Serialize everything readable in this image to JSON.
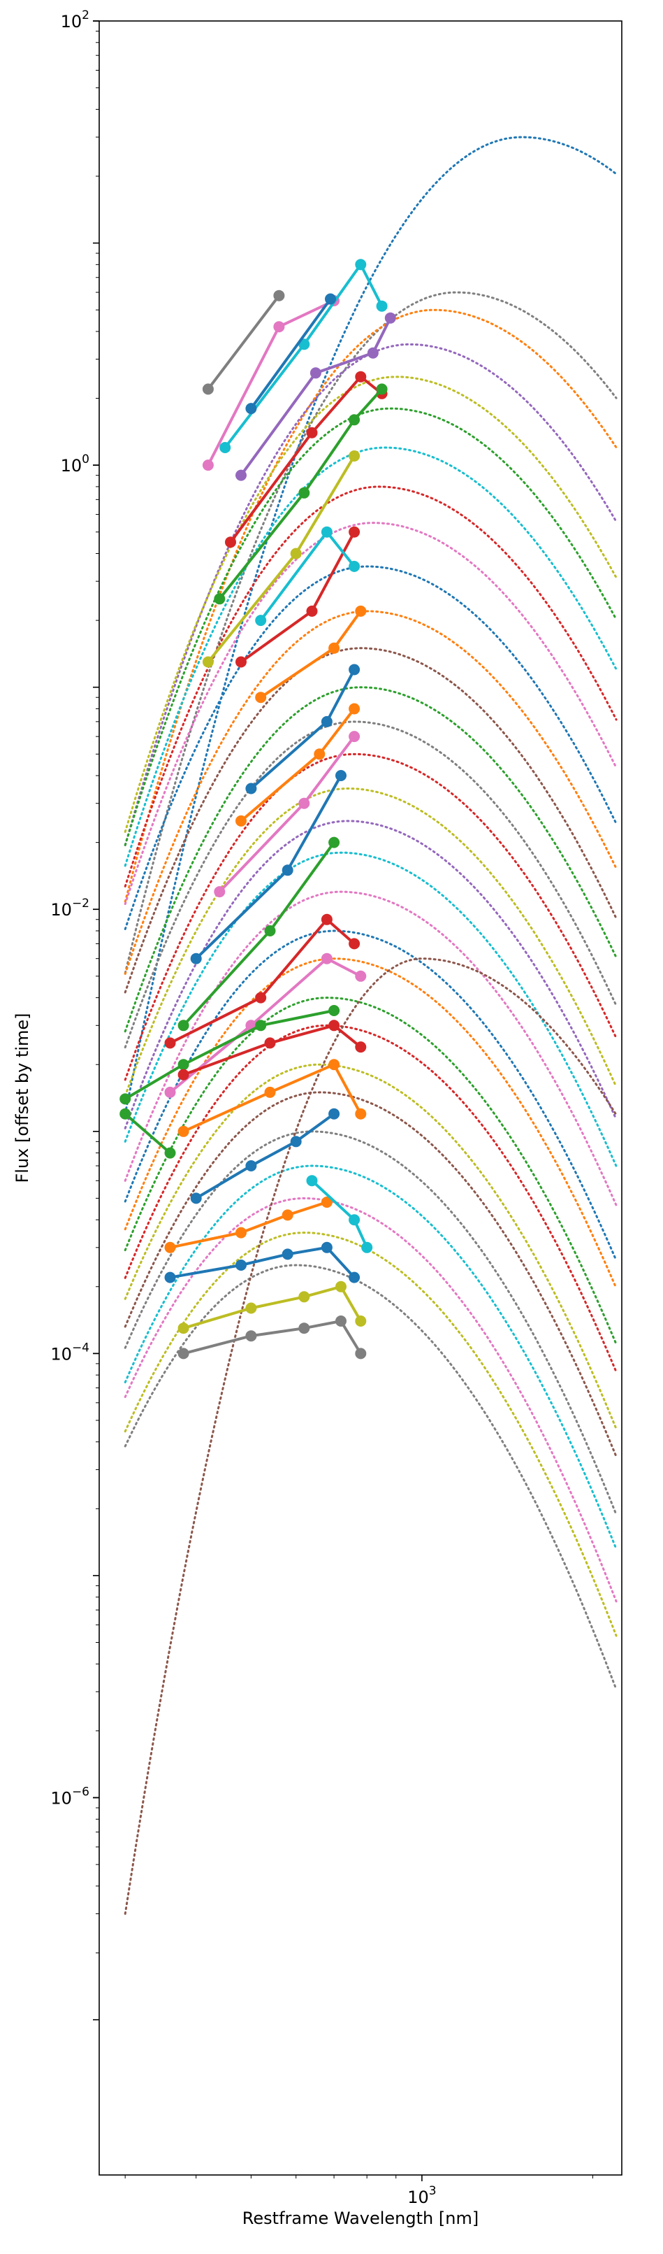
{
  "chart_data": {
    "type": "line",
    "title": "",
    "xlabel": "Restframe Wavelength [nm]",
    "ylabel": "Flux [offset by time]",
    "xscale": "log",
    "yscale": "log",
    "xlim": [
      270,
      2250
    ],
    "ylim": [
      2e-08,
      100
    ],
    "grid": false,
    "legend": "none",
    "y_ticks": [
      {
        "value": 100,
        "mantissa": "10",
        "exponent": "2"
      },
      {
        "value": 1,
        "mantissa": "10",
        "exponent": "0"
      },
      {
        "value": 0.01,
        "mantissa": "10",
        "exponent": "−2"
      },
      {
        "value": 0.0001,
        "mantissa": "10",
        "exponent": "−4"
      },
      {
        "value": 1e-06,
        "mantissa": "10",
        "exponent": "−6"
      }
    ],
    "x_ticks": [
      {
        "value": 1000,
        "mantissa": "10",
        "exponent": "3"
      }
    ],
    "x_minor_ticks": [
      300,
      400,
      500,
      600,
      700,
      800,
      900,
      2000
    ],
    "colors": [
      "#1f77b4",
      "#ff7f0e",
      "#2ca02c",
      "#d62728",
      "#9467bd",
      "#8c564b",
      "#e377c2",
      "#7f7f7f",
      "#bcbd22",
      "#17becf"
    ],
    "model_curves_note_free": true,
    "model_curves": [
      {
        "peak_wavelength": 1500,
        "peak_flux": 30,
        "color_index": 0
      },
      {
        "peak_wavelength": 1150,
        "peak_flux": 6,
        "color_index": 7
      },
      {
        "peak_wavelength": 1050,
        "peak_flux": 5,
        "color_index": 1
      },
      {
        "peak_wavelength": 950,
        "peak_flux": 3.5,
        "color_index": 4
      },
      {
        "peak_wavelength": 900,
        "peak_flux": 2.5,
        "color_index": 8
      },
      {
        "peak_wavelength": 880,
        "peak_flux": 1.8,
        "color_index": 2
      },
      {
        "peak_wavelength": 860,
        "peak_flux": 1.2,
        "color_index": 9
      },
      {
        "peak_wavelength": 840,
        "peak_flux": 0.8,
        "color_index": 3
      },
      {
        "peak_wavelength": 820,
        "peak_flux": 0.55,
        "color_index": 6
      },
      {
        "peak_wavelength": 800,
        "peak_flux": 0.35,
        "color_index": 0
      },
      {
        "peak_wavelength": 800,
        "peak_flux": 0.22,
        "color_index": 1
      },
      {
        "peak_wavelength": 780,
        "peak_flux": 0.15,
        "color_index": 5
      },
      {
        "peak_wavelength": 780,
        "peak_flux": 0.1,
        "color_index": 2
      },
      {
        "peak_wavelength": 760,
        "peak_flux": 0.07,
        "color_index": 7
      },
      {
        "peak_wavelength": 760,
        "peak_flux": 0.05,
        "color_index": 3
      },
      {
        "peak_wavelength": 740,
        "peak_flux": 0.035,
        "color_index": 8
      },
      {
        "peak_wavelength": 740,
        "peak_flux": 0.025,
        "color_index": 4
      },
      {
        "peak_wavelength": 720,
        "peak_flux": 0.018,
        "color_index": 9
      },
      {
        "peak_wavelength": 720,
        "peak_flux": 0.012,
        "color_index": 6
      },
      {
        "peak_wavelength": 700,
        "peak_flux": 0.008,
        "color_index": 0
      },
      {
        "peak_wavelength": 700,
        "peak_flux": 0.006,
        "color_index": 1
      },
      {
        "peak_wavelength": 680,
        "peak_flux": 0.004,
        "color_index": 2
      },
      {
        "peak_wavelength": 680,
        "peak_flux": 0.003,
        "color_index": 3
      },
      {
        "peak_wavelength": 660,
        "peak_flux": 0.002,
        "color_index": 8
      },
      {
        "peak_wavelength": 660,
        "peak_flux": 0.0015,
        "color_index": 5
      },
      {
        "peak_wavelength": 640,
        "peak_flux": 0.001,
        "color_index": 7
      },
      {
        "peak_wavelength": 640,
        "peak_flux": 0.0007,
        "color_index": 9
      },
      {
        "peak_wavelength": 620,
        "peak_flux": 0.0005,
        "color_index": 6
      },
      {
        "peak_wavelength": 620,
        "peak_flux": 0.00035,
        "color_index": 8
      },
      {
        "peak_wavelength": 600,
        "peak_flux": 0.00025,
        "color_index": 7
      },
      {
        "peak_wavelength": 1000,
        "peak_flux": 0.006,
        "color_index": 5,
        "rising_from": 3e-07
      }
    ],
    "photometry_series": [
      {
        "color_index": 7,
        "x": [
          420,
          560
        ],
        "y": [
          2.2,
          5.8
        ]
      },
      {
        "color_index": 6,
        "x": [
          420,
          560,
          700
        ],
        "y": [
          1.0,
          4.2,
          5.5
        ]
      },
      {
        "color_index": 9,
        "x": [
          450,
          620,
          780,
          850
        ],
        "y": [
          1.2,
          3.5,
          8.0,
          5.2
        ]
      },
      {
        "color_index": 0,
        "x": [
          500,
          690
        ],
        "y": [
          1.8,
          5.6
        ]
      },
      {
        "color_index": 4,
        "x": [
          480,
          650,
          820,
          880
        ],
        "y": [
          0.9,
          2.6,
          3.2,
          4.6
        ]
      },
      {
        "color_index": 3,
        "x": [
          460,
          640,
          780,
          850
        ],
        "y": [
          0.45,
          1.4,
          2.5,
          2.1
        ]
      },
      {
        "color_index": 2,
        "x": [
          440,
          620,
          760,
          850
        ],
        "y": [
          0.25,
          0.75,
          1.6,
          2.2
        ]
      },
      {
        "color_index": 8,
        "x": [
          420,
          600,
          760
        ],
        "y": [
          0.13,
          0.4,
          1.1
        ]
      },
      {
        "color_index": 3,
        "x": [
          480,
          640,
          760
        ],
        "y": [
          0.13,
          0.22,
          0.5
        ]
      },
      {
        "color_index": 9,
        "x": [
          520,
          680,
          760
        ],
        "y": [
          0.2,
          0.5,
          0.35
        ]
      },
      {
        "color_index": 1,
        "x": [
          520,
          700,
          780
        ],
        "y": [
          0.09,
          0.15,
          0.22
        ]
      },
      {
        "color_index": 0,
        "x": [
          500,
          680,
          760
        ],
        "y": [
          0.035,
          0.07,
          0.12
        ]
      },
      {
        "color_index": 1,
        "x": [
          480,
          660,
          760
        ],
        "y": [
          0.025,
          0.05,
          0.08
        ]
      },
      {
        "color_index": 6,
        "x": [
          440,
          620,
          760
        ],
        "y": [
          0.012,
          0.03,
          0.06
        ]
      },
      {
        "color_index": 0,
        "x": [
          400,
          580,
          720
        ],
        "y": [
          0.006,
          0.015,
          0.04
        ]
      },
      {
        "color_index": 2,
        "x": [
          380,
          540,
          700
        ],
        "y": [
          0.003,
          0.008,
          0.02
        ]
      },
      {
        "color_index": 3,
        "x": [
          360,
          520,
          680,
          760
        ],
        "y": [
          0.0025,
          0.004,
          0.009,
          0.007
        ]
      },
      {
        "color_index": 6,
        "x": [
          360,
          500,
          680,
          780
        ],
        "y": [
          0.0015,
          0.003,
          0.006,
          0.005
        ]
      },
      {
        "color_index": 2,
        "x": [
          300,
          380,
          520,
          700
        ],
        "y": [
          0.0014,
          0.002,
          0.003,
          0.0035
        ]
      },
      {
        "color_index": 3,
        "x": [
          380,
          540,
          700,
          780
        ],
        "y": [
          0.0018,
          0.0025,
          0.003,
          0.0024
        ]
      },
      {
        "color_index": 1,
        "x": [
          380,
          540,
          700,
          780
        ],
        "y": [
          0.001,
          0.0015,
          0.002,
          0.0012
        ]
      },
      {
        "color_index": 0,
        "x": [
          400,
          500,
          600,
          700
        ],
        "y": [
          0.0005,
          0.0007,
          0.0009,
          0.0012
        ]
      },
      {
        "color_index": 1,
        "x": [
          360,
          480,
          580,
          680
        ],
        "y": [
          0.0003,
          0.00035,
          0.00042,
          0.00048
        ]
      },
      {
        "color_index": 0,
        "x": [
          360,
          480,
          580,
          680,
          760
        ],
        "y": [
          0.00022,
          0.00025,
          0.00028,
          0.0003,
          0.00022
        ]
      },
      {
        "color_index": 8,
        "x": [
          380,
          500,
          620,
          720,
          780
        ],
        "y": [
          0.00013,
          0.00016,
          0.00018,
          0.0002,
          0.00014
        ]
      },
      {
        "color_index": 7,
        "x": [
          380,
          500,
          620,
          720,
          780
        ],
        "y": [
          0.0001,
          0.00012,
          0.00013,
          0.00014,
          0.0001
        ]
      },
      {
        "color_index": 9,
        "x": [
          640,
          760,
          800
        ],
        "y": [
          0.0006,
          0.0004,
          0.0003
        ]
      },
      {
        "color_index": 2,
        "x": [
          300,
          360
        ],
        "y": [
          0.0012,
          0.0008
        ]
      }
    ]
  }
}
